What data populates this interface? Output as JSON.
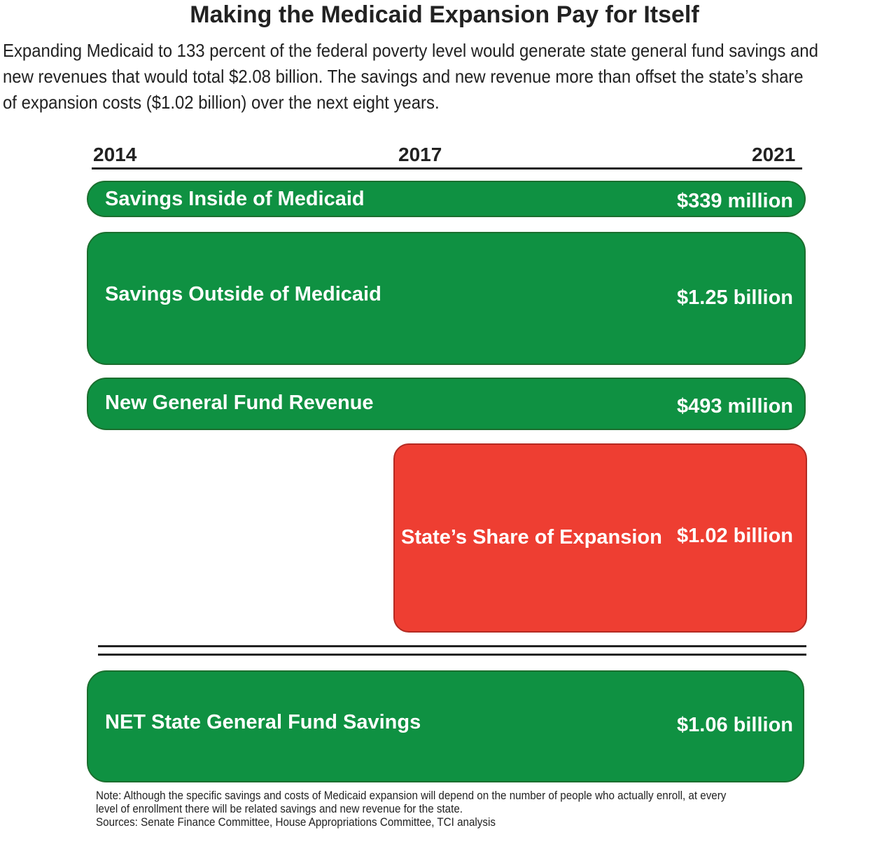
{
  "title": "Making the Medicaid Expansion Pay for Itself",
  "subtitle": "Expanding Medicaid to 133 percent of the federal poverty level would generate state general fund savings and new revenues that would total $2.08 billion. The savings and new revenue more than offset the state’s share of expansion costs ($1.02 billion) over the next eight years.",
  "chart_data": {
    "type": "bar",
    "subtype": "timeline-range",
    "axis": {
      "ticks": [
        "2014",
        "2017",
        "2021"
      ],
      "range": [
        2014,
        2021
      ]
    },
    "series": [
      {
        "name": "Savings Inside of Medicaid",
        "value_label": "$339 million",
        "value_millions": 339,
        "start": 2014,
        "end": 2021,
        "color": "#0f9142"
      },
      {
        "name": "Savings Outside of Medicaid",
        "value_label": "$1.25 billion",
        "value_millions": 1250,
        "start": 2014,
        "end": 2021,
        "color": "#0f9142"
      },
      {
        "name": "New General Fund Revenue",
        "value_label": "$493 million",
        "value_millions": 493,
        "start": 2014,
        "end": 2021,
        "color": "#0f9142"
      },
      {
        "name": "State’s Share of Expansion",
        "value_label": "$1.02 billion",
        "value_millions": 1020,
        "start": 2017,
        "end": 2021,
        "color": "#ee3e32"
      }
    ],
    "total": {
      "name": "NET State General Fund Savings",
      "value_label": "$1.06 billion",
      "value_millions": 1060,
      "color": "#0f9142"
    }
  },
  "note": "Note: Although the specific savings and costs of Medicaid expansion will depend on the number of people who actually enroll, at every level of enrollment there will be related savings and new revenue for the state.",
  "sources": "Sources: Senate Finance Committee, House Appropriations Committee, TCI analysis"
}
